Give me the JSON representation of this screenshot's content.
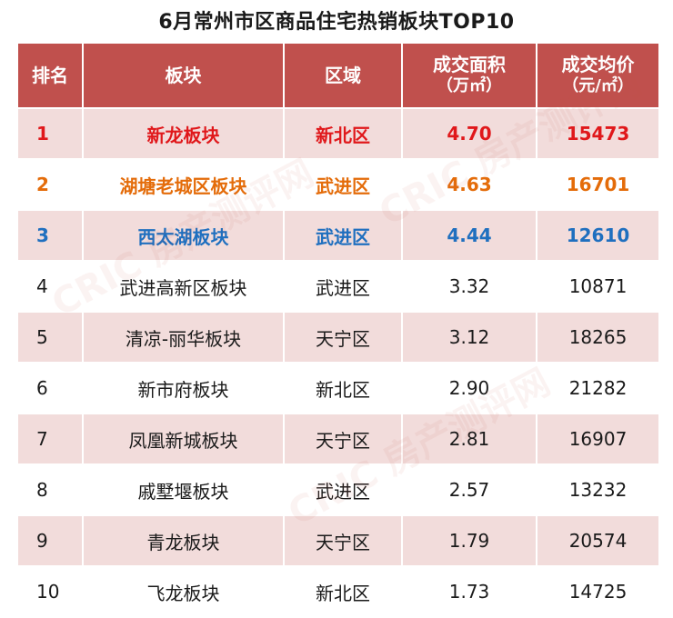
{
  "title": "6月常州市区商品住宅热销板块TOP10",
  "headers": {
    "rank": "排名",
    "block": "板块",
    "district": "区域",
    "area": "成交面积",
    "area_unit": "（万㎡）",
    "price": "成交均价",
    "price_unit": "（元/㎡）"
  },
  "rows": [
    {
      "rank": "1",
      "block": "新龙板块",
      "district": "新北区",
      "area": "4.70",
      "price": "15473"
    },
    {
      "rank": "2",
      "block": "湖塘老城区板块",
      "district": "武进区",
      "area": "4.63",
      "price": "16701"
    },
    {
      "rank": "3",
      "block": "西太湖板块",
      "district": "武进区",
      "area": "4.44",
      "price": "12610"
    },
    {
      "rank": "4",
      "block": "武进高新区板块",
      "district": "武进区",
      "area": "3.32",
      "price": "10871"
    },
    {
      "rank": "5",
      "block": "清凉-丽华板块",
      "district": "天宁区",
      "area": "3.12",
      "price": "18265"
    },
    {
      "rank": "6",
      "block": "新市府板块",
      "district": "新北区",
      "area": "2.90",
      "price": "21282"
    },
    {
      "rank": "7",
      "block": "凤凰新城板块",
      "district": "天宁区",
      "area": "2.81",
      "price": "16907"
    },
    {
      "rank": "8",
      "block": "戚墅堰板块",
      "district": "武进区",
      "area": "2.57",
      "price": "13232"
    },
    {
      "rank": "9",
      "block": "青龙板块",
      "district": "天宁区",
      "area": "1.79",
      "price": "20574"
    },
    {
      "rank": "10",
      "block": "飞龙板块",
      "district": "新北区",
      "area": "1.73",
      "price": "14725"
    }
  ],
  "watermark": "CRIC 房产测评网",
  "colors": {
    "header_bg": "#c0504d",
    "stripe": "#f2dcdb",
    "rank1": "#e0181b",
    "rank2": "#e46c0a",
    "rank3": "#1f6fbf"
  }
}
